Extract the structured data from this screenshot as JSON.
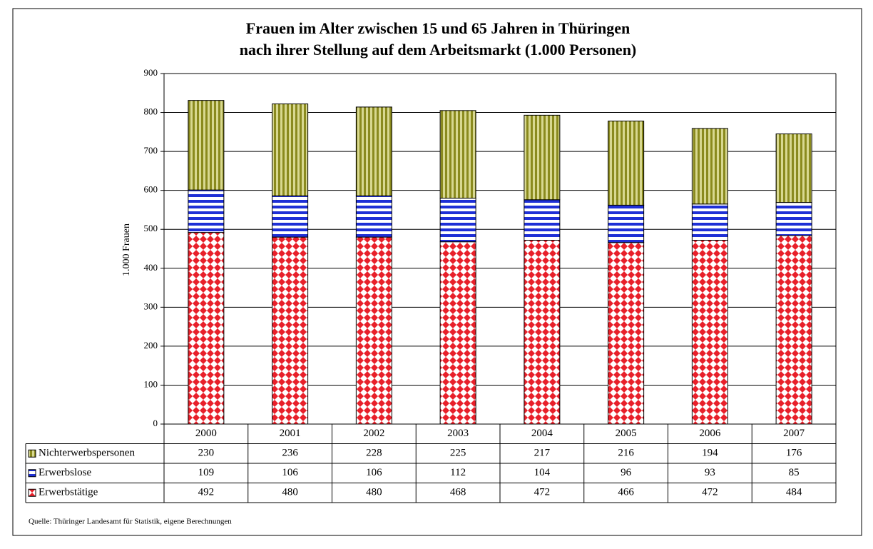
{
  "chart_data": {
    "type": "stacked_bar",
    "title": [
      "Frauen im Alter zwischen 15 und 65 Jahren in Thüringen",
      "nach ihrer Stellung auf dem Arbeitsmarkt (1.000 Personen)"
    ],
    "ylabel": "1.000 Frauen",
    "categories": [
      "2000",
      "2001",
      "2002",
      "2003",
      "2004",
      "2005",
      "2006",
      "2007"
    ],
    "series": [
      {
        "name": "Erwerbstätige",
        "color": "#e8202a",
        "values": [
          492,
          480,
          480,
          468,
          472,
          466,
          472,
          484
        ]
      },
      {
        "name": "Erwerbslose",
        "color": "#1e2fd6",
        "values": [
          109,
          106,
          106,
          112,
          104,
          96,
          93,
          85
        ]
      },
      {
        "name": "Nichterwerbspersonen",
        "color": "#8a8a1e",
        "values": [
          230,
          236,
          228,
          225,
          217,
          216,
          194,
          176
        ]
      }
    ],
    "ylim": [
      0,
      900
    ],
    "yticks": [
      0,
      100,
      200,
      300,
      400,
      500,
      600,
      700,
      800,
      900
    ],
    "grid": true,
    "source": "Quelle: Thüringer Landesamt für Statistik, eigene Berechnungen"
  }
}
